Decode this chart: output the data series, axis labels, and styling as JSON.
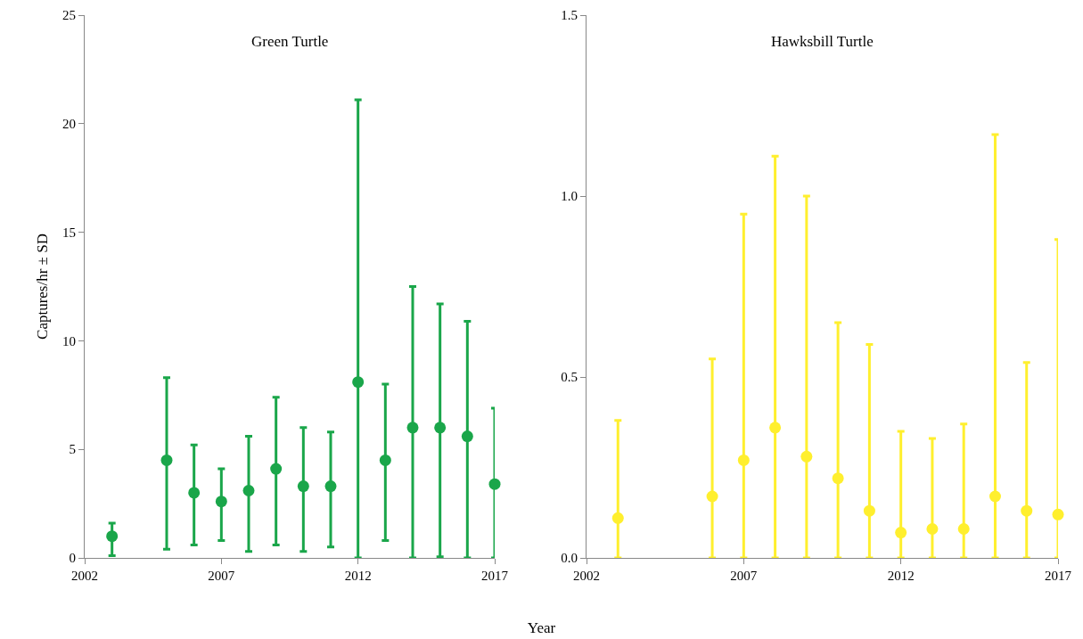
{
  "chart_data": [
    {
      "type": "scatter",
      "title": "Green Turtle",
      "xlabel": "Year",
      "ylabel": "Captures/hr ± SD",
      "marker": "circle",
      "grid": false,
      "x": [
        2003,
        2005,
        2006,
        2007,
        2008,
        2009,
        2010,
        2011,
        2012,
        2013,
        2014,
        2015,
        2016,
        2017
      ],
      "series": [
        {
          "color": "#1aa64a",
          "values": [
            1.0,
            4.5,
            3.0,
            2.6,
            3.1,
            4.1,
            3.3,
            3.3,
            8.1,
            4.5,
            6.0,
            6.0,
            5.6,
            3.4
          ],
          "errors": [
            [
              0.1,
              1.6
            ],
            [
              0.4,
              8.3
            ],
            [
              0.6,
              5.2
            ],
            [
              0.8,
              4.1
            ],
            [
              0.3,
              5.6
            ],
            [
              0.6,
              7.4
            ],
            [
              0.3,
              6.0
            ],
            [
              0.5,
              5.8
            ],
            [
              0,
              21.1
            ],
            [
              0.8,
              8.0
            ],
            [
              0,
              12.5
            ],
            [
              0.05,
              11.7
            ],
            [
              0,
              10.9
            ],
            [
              0,
              6.9
            ]
          ]
        }
      ],
      "xlim": [
        2002,
        2017
      ],
      "xticks": [
        2002,
        2007,
        2012,
        2017
      ],
      "ylim": [
        0,
        25
      ],
      "yticks": [
        0,
        5,
        10,
        15,
        20,
        25
      ]
    },
    {
      "type": "scatter",
      "title": "Hawksbill Turtle",
      "marker": "circle",
      "grid": false,
      "x": [
        2003,
        2006,
        2007,
        2008,
        2009,
        2010,
        2011,
        2012,
        2013,
        2014,
        2015,
        2016,
        2017
      ],
      "series": [
        {
          "color": "#ffef2e",
          "values": [
            0.11,
            0.17,
            0.27,
            0.36,
            0.28,
            0.22,
            0.13,
            0.07,
            0.08,
            0.08,
            0.17,
            0.13,
            0.12
          ],
          "errors": [
            [
              0,
              0.38
            ],
            [
              0,
              0.55
            ],
            [
              0,
              0.95
            ],
            [
              0,
              1.11
            ],
            [
              0,
              1.0
            ],
            [
              0,
              0.65
            ],
            [
              0,
              0.59
            ],
            [
              0,
              0.35
            ],
            [
              0,
              0.33
            ],
            [
              0,
              0.37
            ],
            [
              0,
              1.17
            ],
            [
              0,
              0.54
            ],
            [
              0,
              0.88
            ]
          ]
        }
      ],
      "xlim": [
        2002,
        2017
      ],
      "xticks": [
        2002,
        2007,
        2012,
        2017
      ],
      "ylim": [
        0,
        1.5
      ],
      "yticks": [
        {
          "value": 0,
          "label": "0.0"
        },
        {
          "value": 0.5,
          "label": "0.5"
        },
        {
          "value": 1,
          "label": "1.0"
        },
        {
          "value": 1.5,
          "label": "1.5"
        }
      ]
    }
  ]
}
